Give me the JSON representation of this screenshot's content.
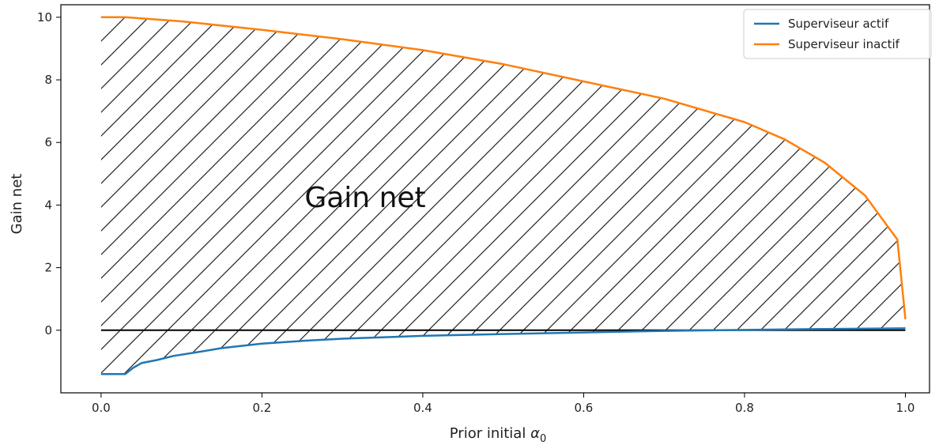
{
  "chart_data": {
    "type": "line",
    "title": "",
    "xlabel": "Prior initial",
    "xlabel_symbol": "α",
    "xlabel_subscript": "0",
    "ylabel": "Gain net",
    "xlim": [
      -0.05,
      1.03
    ],
    "ylim": [
      -2.0,
      10.4
    ],
    "xticks": [
      0.0,
      0.2,
      0.4,
      0.6,
      0.8,
      1.0
    ],
    "xtick_labels": [
      "0.0",
      "0.2",
      "0.4",
      "0.6",
      "0.8",
      "1.0"
    ],
    "yticks": [
      0,
      2,
      4,
      6,
      8,
      10
    ],
    "ytick_labels": [
      "0",
      "2",
      "4",
      "6",
      "8",
      "10"
    ],
    "grid": false,
    "legend_position": "top-right",
    "hline_y": 0,
    "annotation": "Gain net",
    "hatched_region": "between Superviseur actif and Superviseur inactif",
    "series": [
      {
        "name": "Superviseur actif",
        "color": "#1f77b4",
        "x": [
          0.0,
          0.03,
          0.04,
          0.05,
          0.07,
          0.09,
          0.12,
          0.15,
          0.2,
          0.25,
          0.3,
          0.4,
          0.5,
          0.6,
          0.7,
          0.8,
          0.9,
          1.0
        ],
        "y": [
          -1.4,
          -1.4,
          -1.2,
          -1.05,
          -0.95,
          -0.82,
          -0.7,
          -0.57,
          -0.43,
          -0.34,
          -0.27,
          -0.18,
          -0.12,
          -0.07,
          -0.02,
          0.01,
          0.04,
          0.06
        ]
      },
      {
        "name": "Superviseur inactif",
        "color": "#ff7f0e",
        "x": [
          0.0,
          0.03,
          0.1,
          0.2,
          0.3,
          0.4,
          0.5,
          0.6,
          0.7,
          0.8,
          0.85,
          0.9,
          0.95,
          0.97,
          0.99,
          1.0
        ],
        "y": [
          10.0,
          10.0,
          9.87,
          9.6,
          9.3,
          8.95,
          8.5,
          7.95,
          7.4,
          6.65,
          6.1,
          5.35,
          4.3,
          3.6,
          2.9,
          0.35
        ]
      }
    ]
  }
}
